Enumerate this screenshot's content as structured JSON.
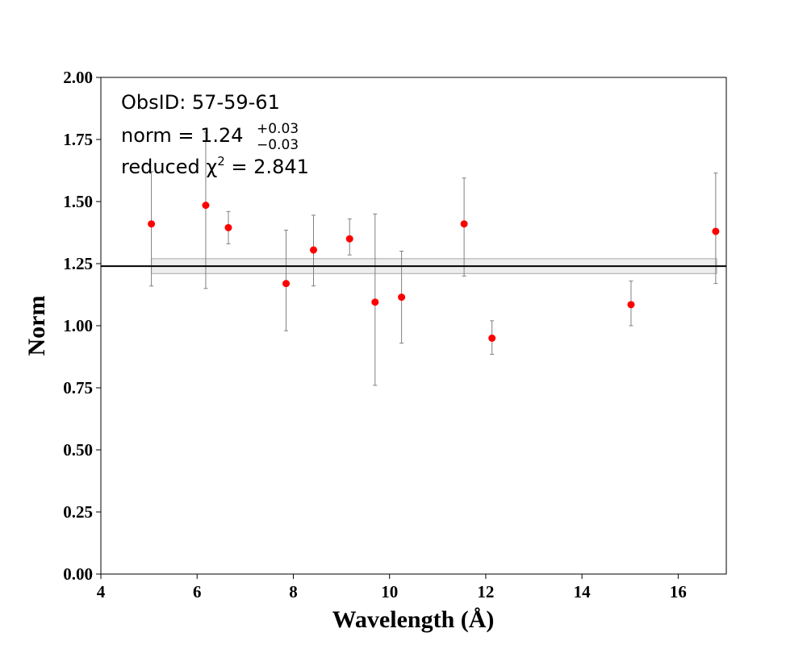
{
  "chart_data": {
    "type": "scatter",
    "title": "",
    "xlabel": "Wavelength (Å)",
    "ylabel": "Norm",
    "xlim": [
      4,
      17
    ],
    "ylim": [
      0.0,
      2.0
    ],
    "xticks": [
      4,
      6,
      8,
      10,
      12,
      14,
      16
    ],
    "yticks": [
      0.0,
      0.25,
      0.5,
      0.75,
      1.0,
      1.25,
      1.5,
      1.75,
      2.0
    ],
    "grid": false,
    "annotations": {
      "obsid": "ObsID: 57-59-61",
      "norm_prefix": "norm = ",
      "norm_value": "1.24",
      "norm_err_plus": "+0.03",
      "norm_err_minus": "−0.03",
      "chi2_prefix": "reduced χ",
      "chi2_sup": "2",
      "chi2_suffix": " = 2.841"
    },
    "best_fit": {
      "norm": 1.24,
      "err_plus": 0.03,
      "err_minus": 0.03,
      "x_range": [
        5.05,
        16.8
      ],
      "color": "#000000",
      "band_color": "#cccccc"
    },
    "points": [
      {
        "x": 5.05,
        "y": 1.41,
        "lo": 1.16,
        "hi": 1.62
      },
      {
        "x": 6.18,
        "y": 1.485,
        "lo": 1.15,
        "hi": 1.78
      },
      {
        "x": 6.65,
        "y": 1.395,
        "lo": 1.33,
        "hi": 1.46
      },
      {
        "x": 7.85,
        "y": 1.17,
        "lo": 0.98,
        "hi": 1.385
      },
      {
        "x": 8.42,
        "y": 1.305,
        "lo": 1.16,
        "hi": 1.445
      },
      {
        "x": 9.17,
        "y": 1.35,
        "lo": 1.285,
        "hi": 1.43
      },
      {
        "x": 9.7,
        "y": 1.095,
        "lo": 0.76,
        "hi": 1.45
      },
      {
        "x": 10.25,
        "y": 1.115,
        "lo": 0.93,
        "hi": 1.3
      },
      {
        "x": 11.55,
        "y": 1.41,
        "lo": 1.2,
        "hi": 1.595
      },
      {
        "x": 12.13,
        "y": 0.95,
        "lo": 0.885,
        "hi": 1.02
      },
      {
        "x": 15.02,
        "y": 1.085,
        "lo": 1.0,
        "hi": 1.18
      },
      {
        "x": 16.78,
        "y": 1.38,
        "lo": 1.17,
        "hi": 1.615
      }
    ],
    "point_color": "#ff0000",
    "errorbar_color": "#808080"
  }
}
